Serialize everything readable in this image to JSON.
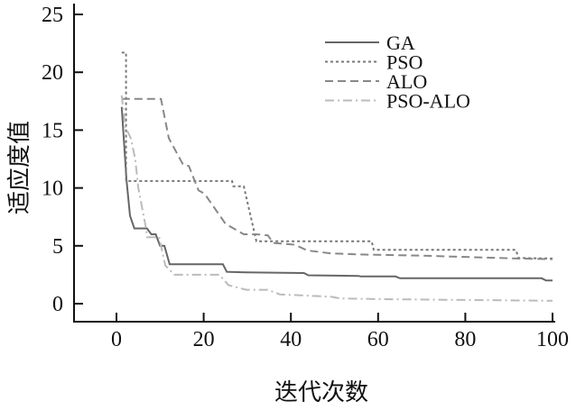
{
  "chart_data": {
    "type": "line",
    "title": "",
    "xlabel": "迭代次数",
    "ylabel": "适应度值",
    "xlim": [
      -10,
      100
    ],
    "ylim": [
      -1.5,
      25
    ],
    "xticks": [
      0,
      20,
      40,
      60,
      80,
      100
    ],
    "yticks": [
      0,
      5,
      10,
      15,
      20,
      25
    ],
    "grid": false,
    "legend_position": "top-right",
    "series": [
      {
        "name": "GA",
        "color": "#666666",
        "style": "solid",
        "x": [
          1.2,
          2.3,
          3.1,
          4.1,
          7,
          8,
          9,
          10,
          11,
          12.2,
          24.4,
          25.3,
          29.6,
          43,
          44,
          55.5,
          56,
          64,
          65,
          97.5,
          98.5,
          100
        ],
        "y": [
          17.0,
          10.7,
          7.6,
          6.5,
          6.5,
          6.0,
          6.0,
          5.0,
          5.0,
          3.4,
          3.4,
          2.75,
          2.7,
          2.65,
          2.45,
          2.4,
          2.35,
          2.35,
          2.2,
          2.2,
          2.0,
          2.0
        ]
      },
      {
        "name": "PSO",
        "color": "#777777",
        "style": "dotted",
        "x": [
          1.2,
          2.2,
          2.2,
          26.5,
          26.8,
          29.2,
          32.1,
          58.5,
          59,
          91.6,
          92.2,
          100
        ],
        "y": [
          21.7,
          21.7,
          10.6,
          10.6,
          10.15,
          10.15,
          5.4,
          5.4,
          4.65,
          4.65,
          3.95,
          3.9
        ]
      },
      {
        "name": "ALO",
        "color": "#888888",
        "style": "dashed",
        "x": [
          1.2,
          10.2,
          12,
          15.3,
          16.6,
          18.8,
          20.2,
          25,
          29.2,
          32,
          34.7,
          36,
          40.9,
          43.7,
          49,
          56,
          70,
          92,
          100
        ],
        "y": [
          17.7,
          17.7,
          14.3,
          12.0,
          11.9,
          9.8,
          9.5,
          6.9,
          6.0,
          6.0,
          5.9,
          5.25,
          5.1,
          4.6,
          4.35,
          4.25,
          4.15,
          3.9,
          3.85
        ]
      },
      {
        "name": "PSO-ALO",
        "color": "#bbbbbb",
        "style": "dashdot",
        "x": [
          1.2,
          2,
          3.3,
          4.3,
          5,
          6.8,
          7,
          9.8,
          10.2,
          11.2,
          13.3,
          23.6,
          25.7,
          29.8,
          34.7,
          37.5,
          49.2,
          51.3,
          63,
          100
        ],
        "y": [
          18.0,
          15.3,
          14.3,
          12.5,
          10.0,
          6.5,
          5.75,
          5.75,
          5.0,
          3.3,
          2.5,
          2.5,
          1.6,
          1.2,
          1.2,
          0.8,
          0.6,
          0.45,
          0.38,
          0.25
        ]
      }
    ]
  }
}
